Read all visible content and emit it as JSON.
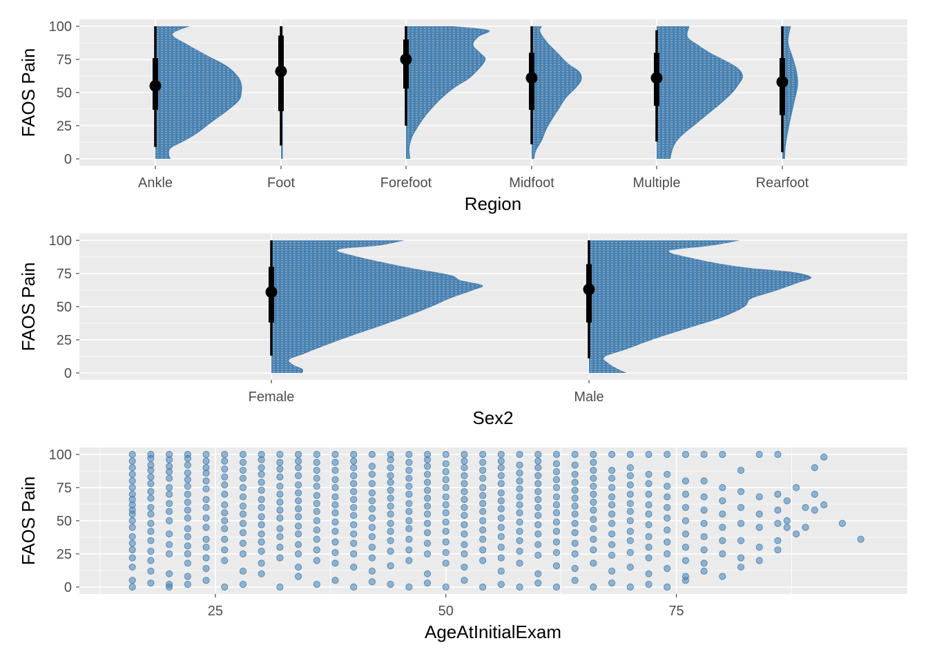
{
  "colors": {
    "fill": "#4682b4",
    "panel": "#ebebeb",
    "grid": "#ffffff",
    "interval": "#000000"
  },
  "chart_data": [
    {
      "type": "halfeye",
      "ylabel": "FAOS Pain",
      "xlabel": "Region",
      "ylim": [
        0,
        100
      ],
      "yticks": [
        0,
        25,
        50,
        75,
        100
      ],
      "grid": true,
      "categories": [
        "Ankle",
        "Foot",
        "Forefoot",
        "Midfoot",
        "Multiple",
        "Rearfoot"
      ],
      "groups": [
        {
          "category": "Ankle",
          "median": 55,
          "q25": 37,
          "q75": 76,
          "lower": 9,
          "upper": 100,
          "density_y": [
            0,
            3,
            8,
            14,
            20,
            28,
            36,
            44,
            50,
            56,
            62,
            70,
            78,
            86,
            94,
            100
          ],
          "density_w": [
            0.18,
            0.16,
            0.18,
            0.35,
            0.5,
            0.66,
            0.83,
            0.97,
            1.0,
            1.0,
            0.96,
            0.83,
            0.6,
            0.38,
            0.2,
            0.4
          ]
        },
        {
          "category": "Foot",
          "median": 66,
          "q25": 36,
          "q75": 93,
          "lower": 10,
          "upper": 100,
          "density_y": [
            0,
            50,
            100
          ],
          "density_w": [
            0.02,
            0.02,
            0.02
          ]
        },
        {
          "category": "Forefoot",
          "median": 75,
          "q25": 53,
          "q75": 90,
          "lower": 25,
          "upper": 100,
          "density_y": [
            0,
            8,
            16,
            22,
            30,
            38,
            46,
            54,
            60,
            66,
            72,
            76,
            80,
            86,
            92,
            97,
            100
          ],
          "density_w": [
            0.05,
            0.04,
            0.07,
            0.12,
            0.2,
            0.3,
            0.42,
            0.57,
            0.72,
            0.82,
            0.9,
            0.92,
            0.86,
            0.78,
            0.84,
            0.96,
            0.55
          ]
        },
        {
          "category": "Midfoot",
          "median": 61,
          "q25": 37,
          "q75": 80,
          "lower": 11,
          "upper": 100,
          "density_y": [
            0,
            6,
            14,
            22,
            30,
            38,
            46,
            54,
            60,
            66,
            72,
            80,
            88,
            96,
            100
          ],
          "density_w": [
            0.03,
            0.05,
            0.12,
            0.17,
            0.24,
            0.32,
            0.4,
            0.52,
            0.58,
            0.55,
            0.42,
            0.3,
            0.18,
            0.1,
            0.12
          ]
        },
        {
          "category": "Multiple",
          "median": 61,
          "q25": 40,
          "q75": 80,
          "lower": 13,
          "upper": 97,
          "density_y": [
            0,
            6,
            12,
            18,
            26,
            34,
            42,
            50,
            56,
            62,
            68,
            74,
            80,
            86,
            92,
            100
          ],
          "density_w": [
            0.16,
            0.18,
            0.22,
            0.3,
            0.45,
            0.6,
            0.75,
            0.88,
            0.95,
            1.0,
            0.95,
            0.8,
            0.62,
            0.48,
            0.36,
            0.38
          ]
        },
        {
          "category": "Rearfoot",
          "median": 58,
          "q25": 33,
          "q75": 76,
          "lower": 5,
          "upper": 100,
          "density_y": [
            0,
            10,
            25,
            40,
            55,
            65,
            75,
            88,
            100
          ],
          "density_w": [
            0.03,
            0.04,
            0.08,
            0.13,
            0.18,
            0.17,
            0.13,
            0.07,
            0.1
          ]
        }
      ]
    },
    {
      "type": "halfeye",
      "ylabel": "FAOS Pain",
      "xlabel": "Sex2",
      "ylim": [
        0,
        100
      ],
      "yticks": [
        0,
        25,
        50,
        75,
        100
      ],
      "grid": true,
      "categories": [
        "Female",
        "Male"
      ],
      "groups": [
        {
          "category": "Female",
          "median": 61,
          "q25": 38,
          "q75": 80,
          "lower": 13,
          "upper": 100,
          "density_y": [
            0,
            3,
            6,
            10,
            14,
            20,
            28,
            36,
            44,
            50,
            56,
            62,
            66,
            70,
            74,
            80,
            88,
            93,
            96,
            100
          ],
          "density_w": [
            0.14,
            0.14,
            0.1,
            0.08,
            0.14,
            0.23,
            0.36,
            0.5,
            0.63,
            0.72,
            0.8,
            0.9,
            0.95,
            0.85,
            0.8,
            0.6,
            0.38,
            0.3,
            0.48,
            0.6
          ]
        },
        {
          "category": "Male",
          "median": 63,
          "q25": 38,
          "q75": 82,
          "lower": 11,
          "upper": 100,
          "density_y": [
            0,
            3,
            7,
            12,
            18,
            26,
            34,
            42,
            50,
            56,
            62,
            68,
            72,
            76,
            80,
            86,
            92,
            96,
            100
          ],
          "density_w": [
            0.17,
            0.13,
            0.09,
            0.07,
            0.17,
            0.3,
            0.45,
            0.6,
            0.7,
            0.73,
            0.84,
            0.94,
            1.0,
            0.92,
            0.68,
            0.48,
            0.36,
            0.55,
            0.68
          ]
        }
      ]
    },
    {
      "type": "scatter",
      "ylabel": "FAOS Pain",
      "xlabel": "AgeAtInitialExam",
      "xlim": [
        14,
        96
      ],
      "ylim": [
        0,
        100
      ],
      "xticks": [
        25,
        50,
        75
      ],
      "yticks": [
        0,
        25,
        50,
        75,
        100
      ],
      "grid": true,
      "x": [
        16,
        16,
        16,
        16,
        16,
        16,
        16,
        16,
        16,
        16,
        16,
        16,
        16,
        16,
        16,
        16,
        16,
        16,
        16,
        16,
        18,
        18,
        18,
        18,
        18,
        18,
        18,
        18,
        18,
        18,
        18,
        18,
        18,
        18,
        18,
        18,
        18,
        20,
        20,
        20,
        20,
        20,
        20,
        20,
        20,
        20,
        20,
        20,
        20,
        20,
        20,
        20,
        20,
        22,
        22,
        22,
        22,
        22,
        22,
        22,
        22,
        22,
        22,
        22,
        22,
        22,
        22,
        22,
        22,
        22,
        24,
        24,
        24,
        24,
        24,
        24,
        24,
        24,
        24,
        24,
        24,
        24,
        24,
        24,
        24,
        26,
        26,
        26,
        26,
        26,
        26,
        26,
        26,
        26,
        26,
        26,
        26,
        26,
        26,
        28,
        28,
        28,
        28,
        28,
        28,
        28,
        28,
        28,
        28,
        28,
        28,
        28,
        28,
        30,
        30,
        30,
        30,
        30,
        30,
        30,
        30,
        30,
        30,
        30,
        30,
        30,
        30,
        30,
        32,
        32,
        32,
        32,
        32,
        32,
        32,
        32,
        32,
        32,
        32,
        32,
        32,
        32,
        34,
        34,
        34,
        34,
        34,
        34,
        34,
        34,
        34,
        34,
        34,
        34,
        34,
        34,
        34,
        36,
        36,
        36,
        36,
        36,
        36,
        36,
        36,
        36,
        36,
        36,
        36,
        36,
        36,
        38,
        38,
        38,
        38,
        38,
        38,
        38,
        38,
        38,
        38,
        38,
        38,
        38,
        38,
        40,
        40,
        40,
        40,
        40,
        40,
        40,
        40,
        40,
        40,
        40,
        40,
        40,
        40,
        40,
        42,
        42,
        42,
        42,
        42,
        42,
        42,
        42,
        42,
        42,
        42,
        42,
        42,
        42,
        44,
        44,
        44,
        44,
        44,
        44,
        44,
        44,
        44,
        44,
        44,
        44,
        44,
        44,
        44,
        46,
        46,
        46,
        46,
        46,
        46,
        46,
        46,
        46,
        46,
        46,
        46,
        46,
        46,
        48,
        48,
        48,
        48,
        48,
        48,
        48,
        48,
        48,
        48,
        48,
        48,
        48,
        48,
        48,
        50,
        50,
        50,
        50,
        50,
        50,
        50,
        50,
        50,
        50,
        50,
        50,
        50,
        50,
        52,
        52,
        52,
        52,
        52,
        52,
        52,
        52,
        52,
        52,
        52,
        52,
        52,
        52,
        52,
        54,
        54,
        54,
        54,
        54,
        54,
        54,
        54,
        54,
        54,
        54,
        54,
        54,
        54,
        56,
        56,
        56,
        56,
        56,
        56,
        56,
        56,
        56,
        56,
        56,
        56,
        56,
        56,
        56,
        58,
        58,
        58,
        58,
        58,
        58,
        58,
        58,
        58,
        58,
        58,
        58,
        58,
        58,
        60,
        60,
        60,
        60,
        60,
        60,
        60,
        60,
        60,
        60,
        60,
        60,
        60,
        60,
        60,
        62,
        62,
        62,
        62,
        62,
        62,
        62,
        62,
        62,
        62,
        62,
        62,
        62,
        62,
        64,
        64,
        64,
        64,
        64,
        64,
        64,
        64,
        64,
        64,
        64,
        64,
        64,
        64,
        66,
        66,
        66,
        66,
        66,
        66,
        66,
        66,
        66,
        66,
        66,
        66,
        66,
        66,
        68,
        68,
        68,
        68,
        68,
        68,
        68,
        68,
        68,
        68,
        68,
        68,
        68,
        70,
        70,
        70,
        70,
        70,
        70,
        70,
        70,
        70,
        70,
        70,
        70,
        70,
        72,
        72,
        72,
        72,
        72,
        72,
        72,
        72,
        72,
        72,
        72,
        72,
        74,
        74,
        74,
        74,
        74,
        74,
        74,
        74,
        74,
        74,
        74,
        76,
        76,
        76,
        76,
        76,
        76,
        76,
        76,
        76,
        76,
        78,
        78,
        78,
        78,
        78,
        78,
        78,
        78,
        78,
        80,
        80,
        80,
        80,
        80,
        80,
        80,
        80,
        82,
        82,
        82,
        82,
        82,
        82,
        82,
        84,
        84,
        84,
        84,
        84,
        84,
        86,
        86,
        86,
        86,
        86,
        86,
        87,
        87,
        87,
        88,
        88,
        89,
        89,
        90,
        90,
        90,
        91,
        91,
        93,
        95
      ],
      "y": [
        0,
        5,
        15,
        22,
        28,
        33,
        38,
        45,
        50,
        55,
        58,
        62,
        66,
        70,
        75,
        80,
        85,
        90,
        95,
        100,
        3,
        12,
        20,
        27,
        35,
        42,
        48,
        55,
        60,
        67,
        72,
        78,
        83,
        88,
        92,
        97,
        100,
        2,
        10,
        25,
        32,
        40,
        50,
        57,
        63,
        70,
        75,
        82,
        87,
        91,
        96,
        100,
        0,
        8,
        18,
        25,
        31,
        38,
        44,
        52,
        58,
        64,
        70,
        76,
        81,
        86,
        92,
        97,
        100,
        2,
        14,
        22,
        30,
        36,
        45,
        52,
        60,
        66,
        74,
        80,
        86,
        90,
        95,
        100,
        5,
        20,
        28,
        36,
        44,
        50,
        56,
        62,
        70,
        77,
        83,
        89,
        95,
        100,
        0,
        12,
        25,
        33,
        41,
        48,
        55,
        61,
        68,
        75,
        82,
        88,
        94,
        100,
        2,
        18,
        27,
        34,
        40,
        47,
        53,
        60,
        66,
        73,
        79,
        85,
        90,
        96,
        100,
        10,
        22,
        30,
        38,
        44,
        52,
        58,
        64,
        70,
        76,
        83,
        89,
        94,
        100,
        0,
        15,
        25,
        32,
        40,
        46,
        53,
        59,
        65,
        71,
        77,
        84,
        90,
        95,
        100,
        8,
        20,
        28,
        36,
        43,
        50,
        57,
        63,
        69,
        76,
        82,
        88,
        94,
        100,
        2,
        18,
        26,
        34,
        42,
        49,
        56,
        62,
        68,
        75,
        81,
        88,
        94,
        100,
        5,
        15,
        25,
        33,
        40,
        47,
        54,
        60,
        66,
        72,
        78,
        84,
        90,
        95,
        100,
        0,
        12,
        22,
        30,
        38,
        45,
        52,
        59,
        65,
        71,
        78,
        85,
        91,
        100,
        4,
        16,
        27,
        35,
        42,
        48,
        55,
        61,
        67,
        73,
        79,
        84,
        90,
        96,
        100,
        2,
        20,
        28,
        36,
        44,
        50,
        57,
        63,
        70,
        76,
        82,
        88,
        94,
        100,
        0,
        10,
        25,
        33,
        41,
        48,
        55,
        61,
        67,
        73,
        79,
        85,
        91,
        96,
        100,
        3,
        18,
        26,
        34,
        42,
        49,
        56,
        62,
        68,
        75,
        81,
        87,
        93,
        100,
        0,
        15,
        25,
        32,
        40,
        47,
        54,
        60,
        66,
        72,
        78,
        84,
        90,
        95,
        100,
        5,
        20,
        28,
        36,
        43,
        50,
        57,
        63,
        69,
        75,
        82,
        88,
        94,
        100,
        0,
        12,
        22,
        30,
        38,
        45,
        52,
        59,
        65,
        71,
        78,
        84,
        90,
        95,
        100,
        2,
        18,
        27,
        35,
        42,
        49,
        56,
        62,
        68,
        74,
        80,
        86,
        92,
        100,
        0,
        10,
        24,
        32,
        40,
        47,
        54,
        60,
        66,
        72,
        78,
        84,
        90,
        95,
        100,
        3,
        16,
        26,
        34,
        42,
        49,
        56,
        62,
        68,
        75,
        81,
        87,
        93,
        100,
        0,
        14,
        25,
        33,
        41,
        48,
        55,
        61,
        67,
        73,
        79,
        85,
        92,
        100,
        5,
        18,
        28,
        36,
        44,
        51,
        58,
        64,
        70,
        76,
        82,
        88,
        94,
        100,
        0,
        12,
        24,
        32,
        40,
        48,
        55,
        62,
        68,
        75,
        82,
        88,
        100,
        3,
        15,
        26,
        35,
        42,
        50,
        57,
        63,
        70,
        77,
        84,
        90,
        100,
        0,
        10,
        22,
        30,
        38,
        47,
        55,
        62,
        70,
        78,
        85,
        100,
        2,
        14,
        25,
        34,
        43,
        52,
        60,
        68,
        76,
        85,
        100,
        0,
        8,
        20,
        30,
        40,
        50,
        60,
        70,
        80,
        100,
        5,
        18,
        28,
        38,
        48,
        58,
        68,
        80,
        100,
        12,
        25,
        35,
        45,
        55,
        65,
        75,
        100,
        8,
        22,
        35,
        48,
        60,
        72,
        88,
        15,
        30,
        45,
        55,
        68,
        100,
        20,
        35,
        48,
        58,
        70,
        100,
        28,
        50,
        65,
        45,
        75,
        40,
        60,
        45,
        70,
        90,
        58,
        62,
        98,
        48,
        36
      ]
    }
  ]
}
